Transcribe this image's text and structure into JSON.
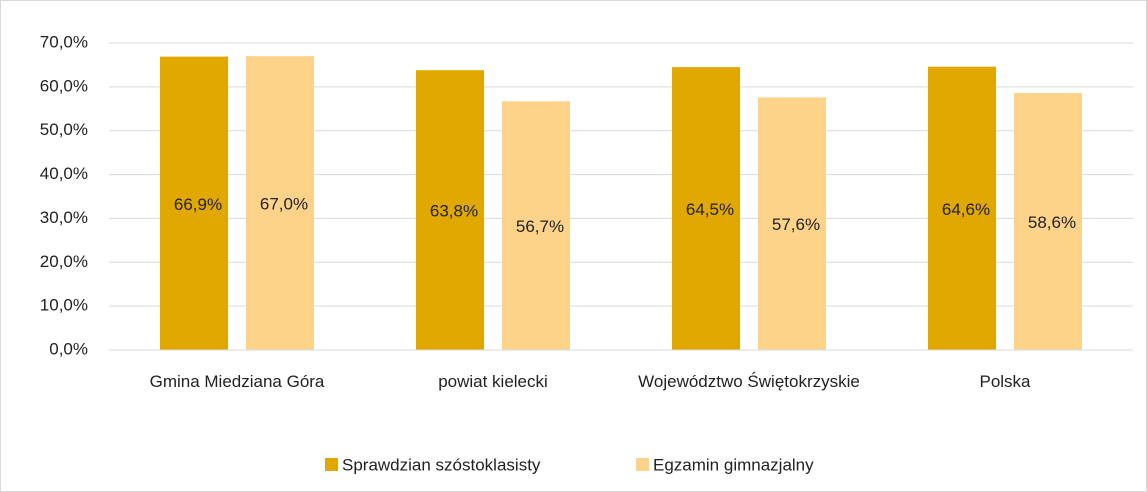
{
  "chart_data": {
    "type": "bar",
    "categories": [
      "Gmina Miedziana Góra",
      "powiat kielecki",
      "Województwo Świętokrzyskie",
      "Polska"
    ],
    "series": [
      {
        "name": "Sprawdzian szóstoklasisty",
        "color": "#e0a800",
        "values": [
          66.9,
          63.8,
          64.5,
          64.6
        ],
        "value_labels": [
          "66,9%",
          "63,8%",
          "64,5%",
          "64,6%"
        ]
      },
      {
        "name": "Egzamin gimnazjalny",
        "color": "#fdd38a",
        "values": [
          67.0,
          56.7,
          57.6,
          58.6
        ],
        "value_labels": [
          "67,0%",
          "56,7%",
          "57,6%",
          "58,6%"
        ]
      }
    ],
    "ylim": [
      0,
      70
    ],
    "yticks": [
      {
        "value": 0,
        "label": "0,0%"
      },
      {
        "value": 10,
        "label": "10,0%"
      },
      {
        "value": 20,
        "label": "20,0%"
      },
      {
        "value": 30,
        "label": "30,0%"
      },
      {
        "value": 40,
        "label": "40,0%"
      },
      {
        "value": 50,
        "label": "50,0%"
      },
      {
        "value": 60,
        "label": "60,0%"
      },
      {
        "value": 70,
        "label": "70,0%"
      }
    ],
    "grid": true,
    "legend": "bottom"
  }
}
